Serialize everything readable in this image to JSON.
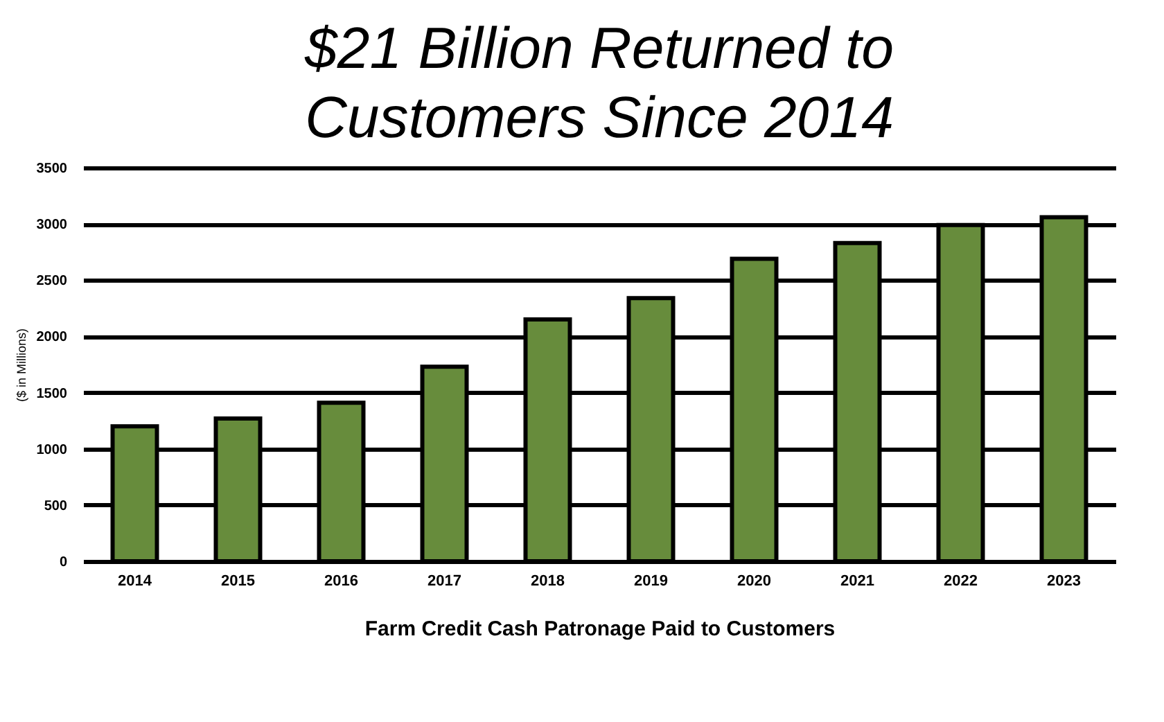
{
  "chart_data": {
    "type": "bar",
    "title": [
      "$21 Billion Returned to",
      "Customers Since 2014"
    ],
    "xlabel": "Farm Credit Cash Patronage   Paid to Customers",
    "ylabel": "($ in Millions)",
    "categories": [
      "2014",
      "2015",
      "2016",
      "2017",
      "2018",
      "2019",
      "2020",
      "2021",
      "2022",
      "2023"
    ],
    "values": [
      1200,
      1270,
      1410,
      1730,
      2150,
      2340,
      2690,
      2830,
      2990,
      3060
    ],
    "color": "#678c3c",
    "ylim": [
      0,
      3500
    ],
    "yticks": [
      0,
      500,
      1000,
      1500,
      2000,
      2500,
      3000,
      3500
    ],
    "grid": "y"
  }
}
